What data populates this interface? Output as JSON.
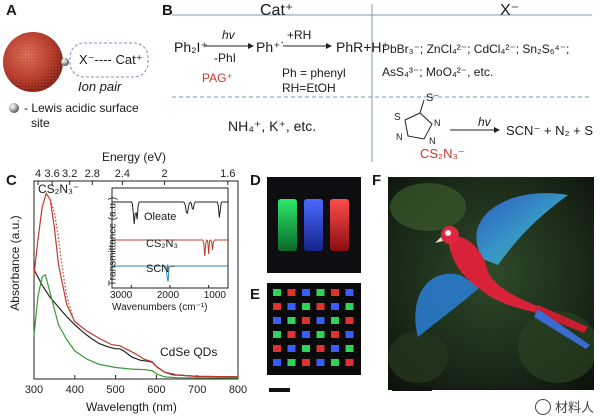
{
  "panels": {
    "A": {
      "letter": "A",
      "anion_label": "X⁻",
      "dash": "----",
      "cation_label": "Cat⁺",
      "ion_pair": "Ion pair",
      "legend_dash": "- Lewis acidic surface",
      "legend_site": "site"
    },
    "B": {
      "letter": "B",
      "cat_header": "Cat⁺",
      "x_header": "X⁻",
      "reaction_left": "Ph₂I⁺",
      "hv": "hv",
      "minus_phi": "-PhI",
      "radical": "Ph⁺˙",
      "plus_rh": "+RH",
      "product": "PhR+H⁺",
      "pag": "PAG⁺",
      "def1": "Ph = phenyl",
      "def2": "RH=EtOH",
      "cations": "NH₄⁺, K⁺, etc.",
      "anions_line1": "PbBr₃⁻;  ZnCl₄²⁻;  CdCl₄²⁻;  Sn₂S₆⁴⁻;",
      "anions_line2": "AsS₄³⁻;  MoO₄²⁻,  etc.",
      "thiol_s": "S",
      "thiol_sminus": "S⁻",
      "ring_n": "N",
      "hv2": "hv",
      "decomp": "SCN⁻ + N₂ + S",
      "cs2n3": "CS₂N₃⁻"
    },
    "C": {
      "letter": "C",
      "top_axis_title": "Energy (eV)",
      "top_ticks": [
        "4",
        "3.6",
        "3.2",
        "2.8",
        "2.4",
        "2",
        "1.6"
      ],
      "peak_label": "CS₂N₃⁻",
      "cdse_label": "CdSe QDs",
      "ylabel": "Absorbance (a.u.)",
      "xlabel": "Wavelength (nm)",
      "inset": {
        "ylabel": "Transmittance (a.u.)",
        "xlabel": "Wavenumbers (cm⁻¹)",
        "oleate": "Oleate",
        "cs2n3": "CS₂N₃",
        "scn": "SCN⁻",
        "ticks": [
          "3000",
          "2000",
          "1000"
        ]
      }
    },
    "D": {
      "letter": "D"
    },
    "E": {
      "letter": "E"
    },
    "F": {
      "letter": "F"
    }
  },
  "watermark": "材料人",
  "chart_data": {
    "type": "line",
    "xlabel": "Wavelength (nm)",
    "ylabel": "Absorbance (a.u.)",
    "xlim": [
      300,
      800
    ],
    "x_ticks": [
      300,
      400,
      500,
      600,
      700,
      800
    ],
    "series": [
      {
        "color": "#222222",
        "points": [
          [
            300,
            1.05
          ],
          [
            320,
            0.9
          ],
          [
            340,
            0.78
          ],
          [
            360,
            0.69
          ],
          [
            380,
            0.6
          ],
          [
            400,
            0.52
          ],
          [
            420,
            0.45
          ],
          [
            440,
            0.39
          ],
          [
            460,
            0.34
          ],
          [
            480,
            0.31
          ],
          [
            500,
            0.29
          ],
          [
            510,
            0.29
          ],
          [
            520,
            0.27
          ],
          [
            540,
            0.21
          ],
          [
            560,
            0.18
          ],
          [
            580,
            0.17
          ],
          [
            590,
            0.16
          ],
          [
            600,
            0.12
          ],
          [
            620,
            0.065
          ],
          [
            640,
            0.04
          ],
          [
            700,
            0.025
          ],
          [
            800,
            0.02
          ]
        ]
      },
      {
        "color": "#c0392b",
        "points": [
          [
            300,
            1.0
          ],
          [
            310,
            1.35
          ],
          [
            320,
            1.65
          ],
          [
            330,
            1.78
          ],
          [
            340,
            1.72
          ],
          [
            350,
            1.45
          ],
          [
            360,
            1.1
          ],
          [
            380,
            0.72
          ],
          [
            400,
            0.55
          ],
          [
            430,
            0.46
          ],
          [
            460,
            0.39
          ],
          [
            490,
            0.33
          ],
          [
            510,
            0.32
          ],
          [
            525,
            0.29
          ],
          [
            550,
            0.24
          ],
          [
            570,
            0.19
          ],
          [
            590,
            0.165
          ],
          [
            600,
            0.12
          ],
          [
            620,
            0.065
          ],
          [
            650,
            0.04
          ],
          [
            700,
            0.025
          ],
          [
            800,
            0.02
          ]
        ]
      },
      {
        "color": "#3a9a3a",
        "points": [
          [
            300,
            0.42
          ],
          [
            310,
            0.8
          ],
          [
            320,
            0.98
          ],
          [
            328,
            1.0
          ],
          [
            340,
            0.82
          ],
          [
            360,
            0.52
          ],
          [
            380,
            0.38
          ],
          [
            400,
            0.27
          ],
          [
            430,
            0.19
          ],
          [
            460,
            0.14
          ],
          [
            500,
            0.11
          ],
          [
            540,
            0.095
          ],
          [
            570,
            0.09
          ],
          [
            590,
            0.08
          ],
          [
            600,
            0.05
          ],
          [
            620,
            0.02
          ],
          [
            650,
            0.012
          ],
          [
            800,
            0.01
          ]
        ]
      }
    ],
    "inset": {
      "type": "line",
      "xlabel": "Wavenumbers (cm⁻¹)",
      "ylabel": "Transmittance (a.u.)",
      "series": [
        {
          "name": "Oleate",
          "color": "#222222"
        },
        {
          "name": "CS₂N₃",
          "color": "#c0392b"
        },
        {
          "name": "SCN⁻",
          "color": "#2e86c1"
        }
      ]
    }
  }
}
